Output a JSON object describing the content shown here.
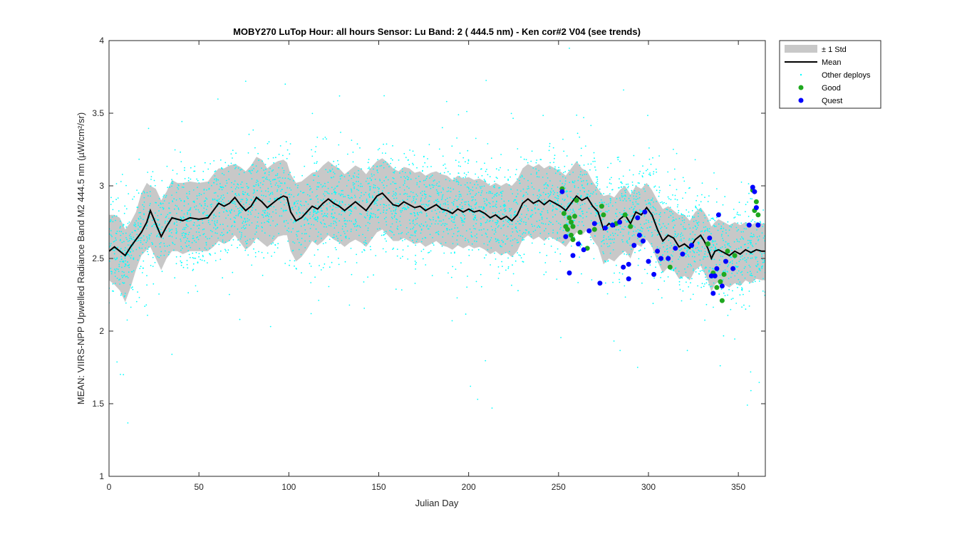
{
  "chart_data": {
    "type": "scatter",
    "title": "MOBY270   LuTop  Hour: all hours  Sensor: Lu Band: 2 ( 444.5 nm)  - Ken cor#2 V04 (see trends)",
    "xlabel": "Julian Day",
    "ylabel": "MEAN: VIIRS-NPP Upwelled Radiance Band M2 444.5 nm (µW/cm²/sr)",
    "xlim": [
      0,
      365
    ],
    "ylim": [
      1,
      4
    ],
    "xticks": [
      0,
      50,
      100,
      150,
      200,
      250,
      300,
      350
    ],
    "yticks": [
      1,
      1.5,
      2,
      2.5,
      3,
      3.5,
      4
    ],
    "xtick_labels": [
      "0",
      "50",
      "100",
      "150",
      "200",
      "250",
      "300",
      "350"
    ],
    "ytick_labels": [
      "1",
      "1.5",
      "2",
      "2.5",
      "3",
      "3.5",
      "4"
    ],
    "grid": false,
    "legend_position": "outside-top-right",
    "legend": {
      "std": "± 1 Std",
      "mean": "Mean",
      "other": "Other deploys",
      "good": "Good",
      "quest": "Quest"
    },
    "colors": {
      "std_band": "#c8c8c8",
      "mean": "#000000",
      "other": "#00ffff",
      "good": "#1fa81f",
      "quest": "#0000ff"
    },
    "series": [
      {
        "name": "Mean",
        "kind": "line",
        "x": [
          0,
          3,
          6,
          9,
          12,
          15,
          18,
          21,
          23,
          26,
          29,
          32,
          35,
          38,
          41,
          45,
          50,
          55,
          58,
          61,
          64,
          67,
          70,
          73,
          76,
          79,
          82,
          85,
          88,
          91,
          94,
          97,
          99,
          101,
          104,
          107,
          110,
          113,
          116,
          119,
          122,
          125,
          128,
          131,
          134,
          137,
          140,
          143,
          146,
          149,
          152,
          155,
          158,
          161,
          164,
          167,
          170,
          173,
          176,
          179,
          182,
          185,
          188,
          191,
          194,
          197,
          200,
          203,
          206,
          209,
          212,
          215,
          218,
          221,
          224,
          227,
          230,
          233,
          236,
          239,
          242,
          245,
          248,
          251,
          254,
          257,
          260,
          263,
          266,
          269,
          272,
          275,
          278,
          281,
          284,
          287,
          290,
          293,
          296,
          299,
          302,
          305,
          308,
          311,
          314,
          317,
          320,
          323,
          326,
          329,
          331,
          333,
          335,
          337,
          339,
          342,
          345,
          348,
          351,
          354,
          357,
          360,
          363,
          365
        ],
        "y": [
          2.55,
          2.58,
          2.55,
          2.52,
          2.58,
          2.63,
          2.68,
          2.75,
          2.83,
          2.74,
          2.65,
          2.72,
          2.78,
          2.77,
          2.76,
          2.78,
          2.77,
          2.78,
          2.83,
          2.88,
          2.86,
          2.88,
          2.92,
          2.87,
          2.83,
          2.86,
          2.92,
          2.89,
          2.85,
          2.88,
          2.91,
          2.93,
          2.92,
          2.82,
          2.76,
          2.78,
          2.82,
          2.86,
          2.84,
          2.88,
          2.91,
          2.88,
          2.86,
          2.83,
          2.86,
          2.89,
          2.86,
          2.83,
          2.88,
          2.93,
          2.95,
          2.91,
          2.87,
          2.86,
          2.89,
          2.87,
          2.85,
          2.86,
          2.83,
          2.85,
          2.87,
          2.84,
          2.83,
          2.81,
          2.84,
          2.82,
          2.84,
          2.82,
          2.83,
          2.81,
          2.78,
          2.8,
          2.77,
          2.79,
          2.76,
          2.8,
          2.88,
          2.91,
          2.88,
          2.9,
          2.87,
          2.9,
          2.88,
          2.86,
          2.83,
          2.88,
          2.93,
          2.9,
          2.92,
          2.86,
          2.82,
          2.7,
          2.74,
          2.72,
          2.77,
          2.8,
          2.74,
          2.82,
          2.8,
          2.85,
          2.8,
          2.7,
          2.62,
          2.66,
          2.64,
          2.58,
          2.6,
          2.57,
          2.63,
          2.66,
          2.62,
          2.57,
          2.5,
          2.55,
          2.56,
          2.54,
          2.52,
          2.55,
          2.53,
          2.56,
          2.54,
          2.56,
          2.55,
          2.55
        ]
      },
      {
        "name": "± 1 Std",
        "kind": "band",
        "upper": [
          2.8,
          2.8,
          2.78,
          2.7,
          2.75,
          2.82,
          2.95,
          3.02,
          3.0,
          2.98,
          2.9,
          2.96,
          3.04,
          3.02,
          3.02,
          3.03,
          3.02,
          3.03,
          3.08,
          3.12,
          3.12,
          3.14,
          3.15,
          3.13,
          3.1,
          3.14,
          3.2,
          3.18,
          3.12,
          3.15,
          3.17,
          3.18,
          3.16,
          3.08,
          3.02,
          3.03,
          3.06,
          3.09,
          3.1,
          3.14,
          3.17,
          3.14,
          3.12,
          3.08,
          3.11,
          3.14,
          3.12,
          3.08,
          3.13,
          3.17,
          3.19,
          3.16,
          3.12,
          3.1,
          3.13,
          3.12,
          3.09,
          3.1,
          3.07,
          3.09,
          3.1,
          3.08,
          3.07,
          3.04,
          3.07,
          3.05,
          3.06,
          3.04,
          3.05,
          3.03,
          3.0,
          3.02,
          3.0,
          3.02,
          3.0,
          3.04,
          3.12,
          3.15,
          3.13,
          3.15,
          3.12,
          3.14,
          3.12,
          3.1,
          3.07,
          3.12,
          3.17,
          3.12,
          3.1,
          3.03,
          2.98,
          2.93,
          2.94,
          2.92,
          2.97,
          3.0,
          2.94,
          3.0,
          2.98,
          3.02,
          2.97,
          2.9,
          2.84,
          2.86,
          2.83,
          2.8,
          2.8,
          2.76,
          2.82,
          2.85,
          2.82,
          2.78,
          2.72,
          2.75,
          2.77,
          2.75,
          2.73,
          2.75,
          2.73,
          2.75,
          2.73,
          2.75,
          2.74,
          2.74
        ],
        "lower": [
          2.35,
          2.32,
          2.28,
          2.2,
          2.3,
          2.42,
          2.52,
          2.56,
          2.58,
          2.5,
          2.42,
          2.5,
          2.55,
          2.55,
          2.53,
          2.55,
          2.55,
          2.55,
          2.58,
          2.62,
          2.6,
          2.62,
          2.66,
          2.61,
          2.56,
          2.59,
          2.64,
          2.61,
          2.58,
          2.61,
          2.65,
          2.66,
          2.66,
          2.55,
          2.48,
          2.51,
          2.56,
          2.62,
          2.59,
          2.62,
          2.66,
          2.63,
          2.61,
          2.58,
          2.61,
          2.63,
          2.61,
          2.58,
          2.63,
          2.68,
          2.7,
          2.66,
          2.62,
          2.62,
          2.64,
          2.62,
          2.6,
          2.61,
          2.58,
          2.6,
          2.62,
          2.59,
          2.58,
          2.56,
          2.59,
          2.57,
          2.59,
          2.57,
          2.58,
          2.56,
          2.53,
          2.55,
          2.52,
          2.54,
          2.51,
          2.55,
          2.63,
          2.66,
          2.63,
          2.65,
          2.62,
          2.65,
          2.63,
          2.61,
          2.58,
          2.63,
          2.68,
          2.66,
          2.7,
          2.63,
          2.58,
          2.46,
          2.5,
          2.48,
          2.52,
          2.55,
          2.5,
          2.6,
          2.58,
          2.63,
          2.58,
          2.48,
          2.4,
          2.44,
          2.42,
          2.36,
          2.38,
          2.35,
          2.42,
          2.45,
          2.4,
          2.35,
          2.27,
          2.32,
          2.34,
          2.32,
          2.3,
          2.33,
          2.31,
          2.35,
          2.33,
          2.36,
          2.35,
          2.35
        ]
      },
      {
        "name": "Good",
        "kind": "points",
        "x": [
          252,
          253,
          254,
          255,
          256,
          257,
          257,
          258,
          258,
          259,
          260,
          262,
          266,
          270,
          274,
          275,
          282,
          287,
          290,
          312,
          333,
          336,
          338,
          340,
          341,
          342,
          344,
          348,
          358,
          359,
          360,
          361
        ],
        "y": [
          2.98,
          2.81,
          2.72,
          2.7,
          2.78,
          2.75,
          2.66,
          2.63,
          2.72,
          2.79,
          2.9,
          2.68,
          2.57,
          2.7,
          2.86,
          2.8,
          2.74,
          2.8,
          2.72,
          2.44,
          2.6,
          2.4,
          2.3,
          2.34,
          2.21,
          2.39,
          2.55,
          2.52,
          2.97,
          2.83,
          2.89,
          2.8
        ]
      },
      {
        "name": "Quest",
        "kind": "points",
        "x": [
          252,
          254,
          256,
          258,
          261,
          264,
          267,
          270,
          273,
          276,
          280,
          284,
          286,
          289,
          289,
          292,
          294,
          295,
          297,
          298,
          300,
          303,
          305,
          307,
          311,
          315,
          319,
          324,
          334,
          335,
          336,
          337,
          338,
          339,
          341,
          343,
          347,
          356,
          358,
          359,
          360,
          361
        ],
        "y": [
          2.96,
          2.65,
          2.4,
          2.52,
          2.6,
          2.56,
          2.69,
          2.74,
          2.33,
          2.71,
          2.73,
          2.75,
          2.44,
          2.46,
          2.36,
          2.59,
          2.78,
          2.66,
          2.62,
          2.82,
          2.48,
          2.39,
          2.55,
          2.5,
          2.5,
          2.57,
          2.53,
          2.59,
          2.64,
          2.38,
          2.26,
          2.38,
          2.43,
          2.8,
          2.31,
          2.48,
          2.43,
          2.73,
          2.99,
          2.96,
          2.85,
          2.73
        ]
      },
      {
        "name": "Other deploys",
        "kind": "scatter-cloud",
        "count": 4200,
        "spread_std": 0.17,
        "outliers": [
          [
            76,
            3.72
          ],
          [
            98,
            3.7
          ],
          [
            153,
            3.62
          ],
          [
            8,
            1.7
          ],
          [
            201,
            1.62
          ],
          [
            205,
            1.53
          ],
          [
            213,
            1.47
          ],
          [
            35,
            1.84
          ],
          [
            294,
            1.75
          ],
          [
            357,
            1.59
          ],
          [
            355,
            1.49
          ],
          [
            338,
            2.98
          ],
          [
            326,
            3.18
          ],
          [
            264,
            3.47
          ]
        ]
      }
    ]
  }
}
